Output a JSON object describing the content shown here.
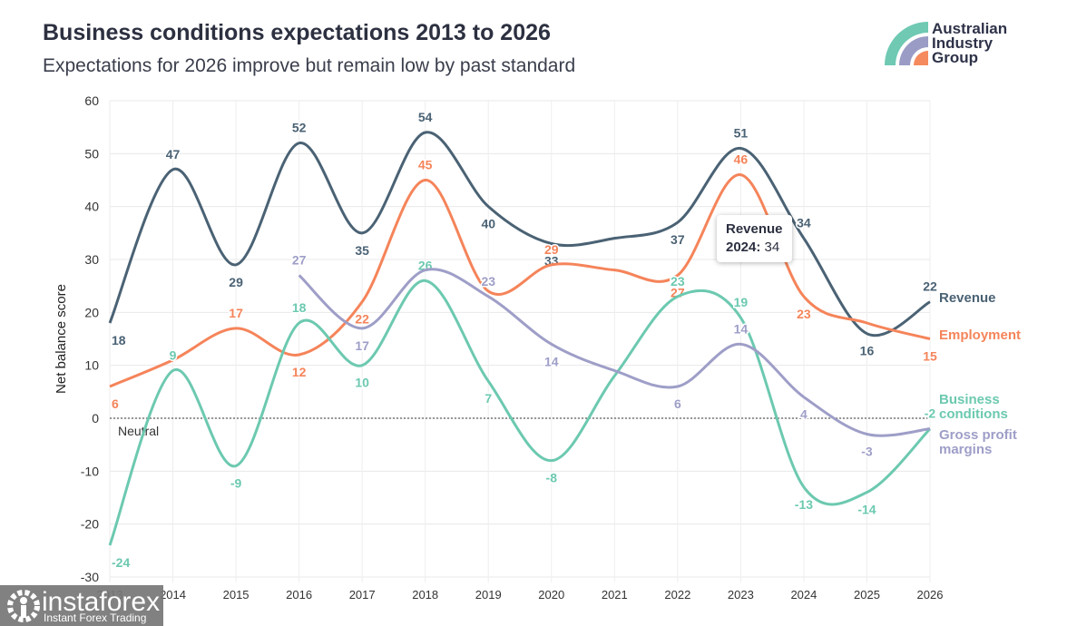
{
  "title": "Business conditions expectations 2013 to 2026",
  "subtitle": "Expectations for 2026 improve but remain low by past standard",
  "logo": {
    "text_lines": [
      "Australian",
      "Industry",
      "Group"
    ],
    "colors": [
      "#6fc9b3",
      "#9a9cc6",
      "#f58a5e"
    ]
  },
  "watermark": {
    "brand": "instaforex",
    "tagline": "Instant Forex Trading"
  },
  "tooltip": {
    "series": "Revenue",
    "year": "2024:",
    "value": "34"
  },
  "chart_data": {
    "type": "line",
    "title": "Business conditions expectations 2013 to 2026",
    "ylabel": "Net balance score",
    "xlabel": "",
    "ylim": [
      -30,
      60
    ],
    "yticks": [
      -30,
      -20,
      -10,
      0,
      10,
      20,
      30,
      40,
      50,
      60
    ],
    "x": [
      2013,
      2014,
      2015,
      2016,
      2017,
      2018,
      2019,
      2020,
      2021,
      2022,
      2023,
      2024,
      2025,
      2026
    ],
    "reference_line": {
      "value": 0,
      "label": "Neutral"
    },
    "grid": true,
    "legend": "end-labels-right",
    "series": [
      {
        "name": "Revenue",
        "color": "#4a6274",
        "values": [
          18,
          47,
          29,
          52,
          35,
          54,
          40,
          33,
          34,
          37,
          51,
          34,
          16,
          22
        ],
        "labels": [
          "18",
          "47",
          "29",
          "52",
          "35",
          "54",
          "40",
          "33",
          null,
          "37",
          "51",
          "34",
          "16",
          "22"
        ]
      },
      {
        "name": "Employment",
        "color": "#f5845a",
        "values": [
          6,
          11,
          17,
          12,
          22,
          45,
          24,
          29,
          28,
          27,
          46,
          23,
          18,
          15
        ],
        "labels": [
          "6",
          null,
          "17",
          "12",
          "22",
          "45",
          null,
          "29",
          null,
          "27",
          "46",
          "23",
          null,
          "15"
        ]
      },
      {
        "name": "Business conditions",
        "color": "#6cc9b0",
        "values": [
          -24,
          9,
          -9,
          18,
          10,
          26,
          7,
          -8,
          8,
          23,
          19,
          -13,
          -14,
          -2
        ],
        "labels": [
          "-24",
          "9",
          "-9",
          "18",
          "10",
          "26",
          "7",
          "-8",
          null,
          "23",
          "19",
          "-13",
          "-14",
          "-2"
        ]
      },
      {
        "name": "Gross profit margins",
        "color": "#9e9ec8",
        "values": [
          null,
          null,
          null,
          27,
          17,
          28,
          23,
          14,
          9,
          6,
          14,
          4,
          -3,
          -2
        ],
        "labels": [
          null,
          null,
          null,
          "27",
          "17",
          null,
          "23",
          "14",
          null,
          "6",
          "14",
          "4",
          "-3",
          null
        ]
      }
    ]
  }
}
